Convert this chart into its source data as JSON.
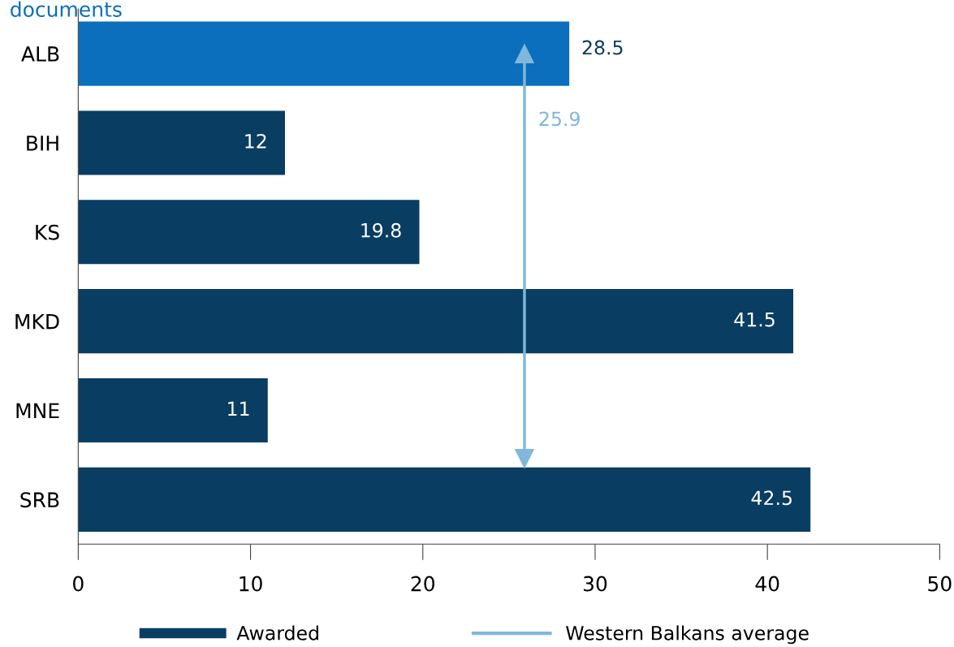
{
  "chart_data": {
    "type": "bar",
    "orientation": "horizontal",
    "title": "documents",
    "categories": [
      "ALB",
      "BIH",
      "KS",
      "MKD",
      "MNE",
      "SRB"
    ],
    "series": [
      {
        "name": "Awarded",
        "color": "#0a3d62",
        "colors": [
          "#0b6fbd",
          "#0a3d62",
          "#0a3d62",
          "#0a3d62",
          "#0a3d62",
          "#0a3d62"
        ],
        "values": [
          28.5,
          12,
          19.8,
          41.5,
          11,
          42.5
        ]
      }
    ],
    "data_labels": true,
    "ref_lines": [
      {
        "axis": "x",
        "value": 25.9,
        "label": "Western Balkans average",
        "color": "#7fb8da"
      }
    ],
    "annotations": [
      "25.9"
    ],
    "xlim": [
      0,
      50
    ],
    "xticks": [
      0,
      10,
      20,
      30,
      40,
      50
    ],
    "grid": false,
    "legend": "bottom"
  }
}
